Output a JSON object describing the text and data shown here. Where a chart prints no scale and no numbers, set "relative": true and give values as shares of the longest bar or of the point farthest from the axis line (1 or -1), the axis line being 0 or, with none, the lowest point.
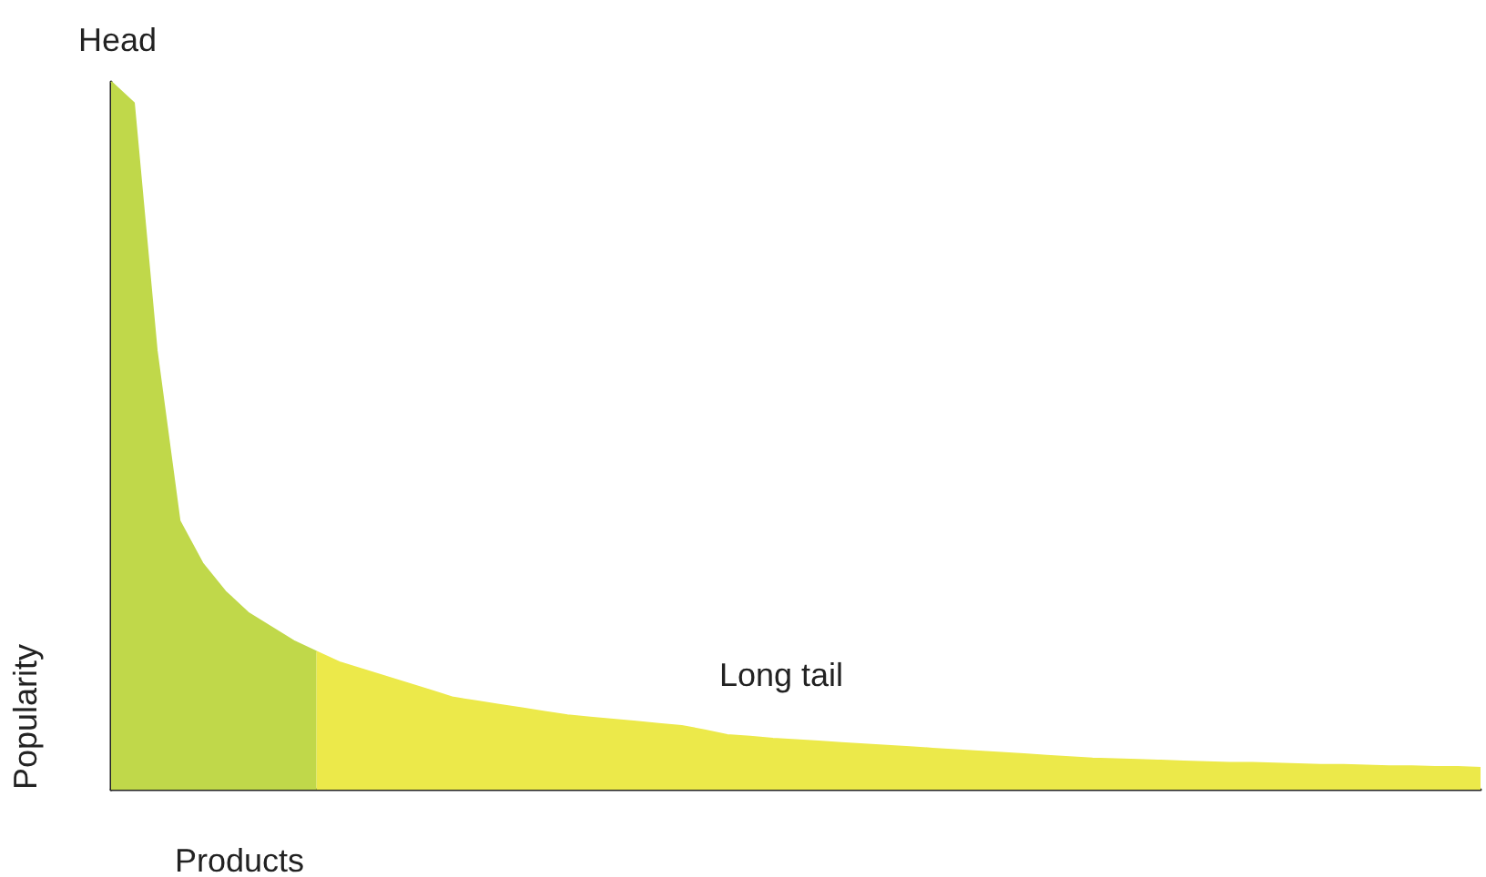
{
  "chart_data": {
    "type": "area",
    "title": "Head",
    "xlabel": "Products",
    "ylabel": "Popularity",
    "annotations": [
      "Long tail"
    ],
    "relative": true,
    "grid": false,
    "marker": "none",
    "categories": [
      null,
      null,
      null,
      null,
      null,
      null,
      null,
      null,
      null,
      null,
      null,
      null,
      null,
      null,
      null,
      null,
      null,
      null,
      null,
      null,
      null,
      null,
      null,
      null,
      null,
      null,
      null,
      null,
      null,
      null,
      null,
      null,
      null,
      null,
      null,
      null,
      null,
      null,
      null,
      null,
      null,
      null,
      null,
      null,
      null,
      null,
      null,
      null,
      null,
      null,
      null,
      null,
      null,
      null,
      null,
      null,
      null,
      null,
      null,
      null,
      null
    ],
    "series": [
      {
        "color": "#c0d84a",
        "values": [
          1,
          0.97,
          0.62,
          0.38,
          0.32,
          0.28,
          0.25,
          0.23,
          0.21,
          0.195,
          null,
          null,
          null,
          null,
          null,
          null,
          null,
          null,
          null,
          null,
          null,
          null,
          null,
          null,
          null,
          null,
          null,
          null,
          null,
          null,
          null,
          null,
          null,
          null,
          null,
          null,
          null,
          null,
          null,
          null,
          null,
          null,
          null,
          null,
          null,
          null,
          null,
          null,
          null,
          null,
          null,
          null,
          null,
          null,
          null,
          null,
          null,
          null,
          null,
          null,
          null
        ]
      },
      {
        "color": "#ece94a",
        "values": [
          null,
          null,
          null,
          null,
          null,
          null,
          null,
          null,
          null,
          0.195,
          0.18,
          0.17,
          0.16,
          0.15,
          0.14,
          0.13,
          0.125,
          0.12,
          0.115,
          0.11,
          0.105,
          0.102,
          0.099,
          0.096,
          0.093,
          0.09,
          0.084,
          0.077,
          0.075,
          0.072,
          0.07,
          0.068,
          0.066,
          0.064,
          0.062,
          0.06,
          0.058,
          0.056,
          0.054,
          0.052,
          0.05,
          0.048,
          0.046,
          0.044,
          0.043,
          0.042,
          0.041,
          0.04,
          0.039,
          0.038,
          0.038,
          0.037,
          0.036,
          0.035,
          0.035,
          0.034,
          0.033,
          0.033,
          0.032,
          0.032,
          0.031
        ]
      }
    ]
  }
}
